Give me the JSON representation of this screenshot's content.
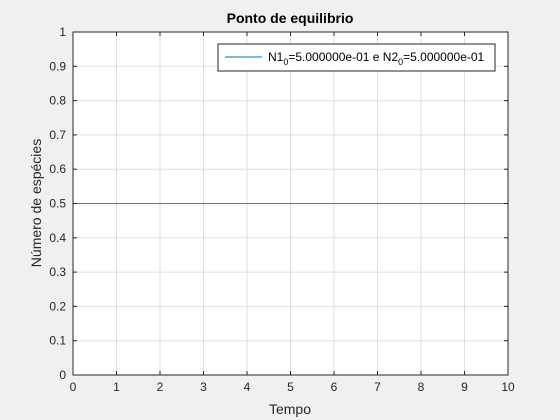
{
  "chart_data": {
    "type": "line",
    "title": "Ponto de equilibrio",
    "xlabel": "Tempo",
    "ylabel": "Número de espécies",
    "xlim": [
      0,
      10
    ],
    "ylim": [
      0,
      1
    ],
    "x_ticks": [
      "0",
      "1",
      "2",
      "3",
      "4",
      "5",
      "6",
      "7",
      "8",
      "9",
      "10"
    ],
    "y_ticks": [
      "0",
      "0.1",
      "0.2",
      "0.3",
      "0.4",
      "0.5",
      "0.6",
      "0.7",
      "0.8",
      "0.9",
      "1"
    ],
    "grid": true,
    "legend_position": "top-right",
    "legend": {
      "n1_base": "N1",
      "n1_sub": "0",
      "n1_value": "=5.000000e-01 e N2",
      "n2_sub": "0",
      "n2_value": "=5.000000e-01"
    },
    "series": [
      {
        "color": "#0072bd",
        "x": [
          0,
          10
        ],
        "y": [
          0.5,
          0.5
        ]
      },
      {
        "color": "#d95319",
        "x": [
          0,
          10
        ],
        "y": [
          0.5,
          0.5
        ]
      }
    ]
  }
}
